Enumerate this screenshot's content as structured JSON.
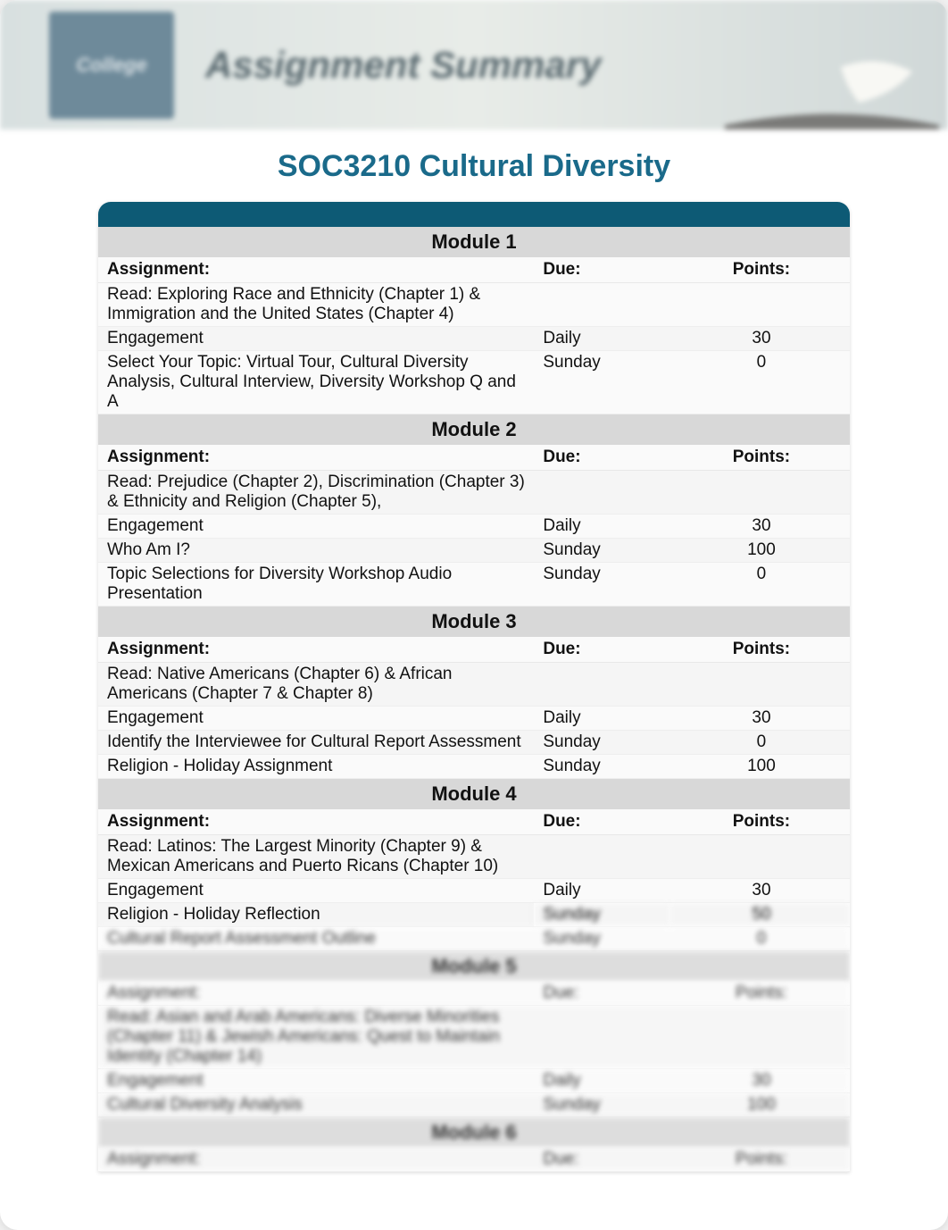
{
  "header": {
    "banner_title": "Assignment Summary",
    "logo_text": "College"
  },
  "course_title": "SOC3210 Cultural Diversity",
  "colors": {
    "title_color": "#1a6a8a",
    "dark_bar": "#0d5a75",
    "module_header_bg": "#d8d8d8",
    "page_bg": "#ffffff"
  },
  "column_headers": {
    "assignment": "Assignment:",
    "due": "Due:",
    "points": "Points:"
  },
  "modules": [
    {
      "title": "Module 1",
      "rows": [
        {
          "assignment": "Read: Exploring Race and Ethnicity (Chapter 1)  & Immigration and the United States (Chapter 4)",
          "due": "",
          "points": ""
        },
        {
          "assignment": "Engagement",
          "due": "Daily",
          "points": "30"
        },
        {
          "assignment": "Select Your Topic: Virtual Tour, Cultural Diversity Analysis, Cultural Interview, Diversity Workshop Q and A",
          "due": "Sunday",
          "points": "0"
        }
      ]
    },
    {
      "title": "Module 2",
      "rows": [
        {
          "assignment": "Read: Prejudice (Chapter 2),  Discrimination (Chapter 3) & Ethnicity and Religion (Chapter 5),",
          "due": "",
          "points": ""
        },
        {
          "assignment": "Engagement",
          "due": "Daily",
          "points": "30"
        },
        {
          "assignment": "Who Am I?",
          "due": "Sunday",
          "points": "100"
        },
        {
          "assignment": "Topic Selections for Diversity Workshop Audio Presentation",
          "due": "Sunday",
          "points": "0"
        }
      ]
    },
    {
      "title": "Module 3",
      "rows": [
        {
          "assignment": "Read: Native Americans (Chapter 6) & African Americans (Chapter 7 & Chapter 8)",
          "due": "",
          "points": ""
        },
        {
          "assignment": "Engagement",
          "due": "Daily",
          "points": "30"
        },
        {
          "assignment": "Identify the Interviewee for Cultural Report Assessment",
          "due": "Sunday",
          "points": "0"
        },
        {
          "assignment": "Religion - Holiday Assignment",
          "due": "Sunday",
          "points": "100"
        }
      ]
    },
    {
      "title": "Module 4",
      "rows": [
        {
          "assignment": "Read: Latinos: The Largest Minority (Chapter 9) & Mexican Americans and Puerto Ricans (Chapter 10)",
          "due": "",
          "points": ""
        },
        {
          "assignment": "Engagement",
          "due": "Daily",
          "points": "30"
        },
        {
          "assignment": "Religion - Holiday Reflection",
          "due": "Sunday",
          "points": "50"
        },
        {
          "assignment": "Cultural Report Assessment Outline",
          "due": "Sunday",
          "points": "0"
        }
      ]
    },
    {
      "title": "Module 5",
      "rows": [
        {
          "assignment": "Assignment:",
          "due": "Due:",
          "points": "Points:"
        },
        {
          "assignment": "Read: Asian and Arab Americans: Diverse Minorities (Chapter 11) & Jewish Americans: Quest to Maintain Identity (Chapter 14)",
          "due": "",
          "points": ""
        },
        {
          "assignment": "Engagement",
          "due": "Daily",
          "points": "30"
        },
        {
          "assignment": "Cultural Diversity Analysis",
          "due": "Sunday",
          "points": "100"
        }
      ]
    },
    {
      "title": "Module 6",
      "rows": [
        {
          "assignment": "Assignment:",
          "due": "Due:",
          "points": "Points:"
        }
      ]
    }
  ]
}
